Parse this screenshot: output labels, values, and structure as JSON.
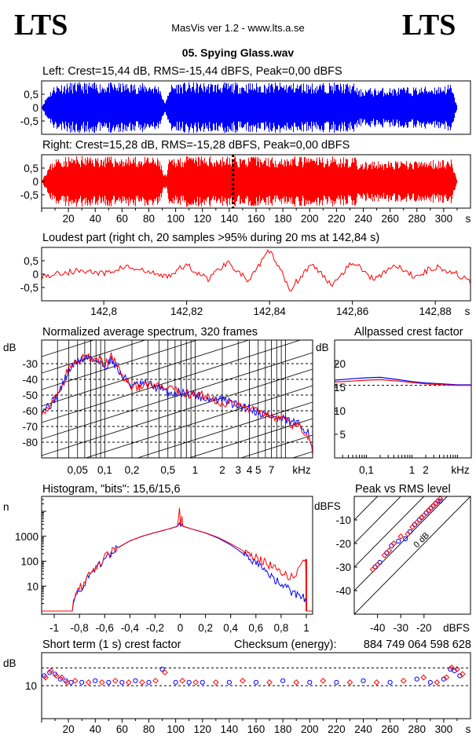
{
  "header": {
    "logo_left": "LTS",
    "logo_right": "LTS",
    "app_title": "MasVis ver 1.2 - www.lts.a.se",
    "file_title": "05. Spying Glass.wav"
  },
  "colors": {
    "left": "#0000ff",
    "right": "#ff0000",
    "grid": "#000000"
  },
  "chart_data": [
    {
      "type": "area",
      "id": "left_waveform",
      "title": "Left: Crest=15,44 dB, RMS=-15,44 dBFS, Peak=0,00 dBFS",
      "crest_db": 15.44,
      "rms_dbfs": -15.44,
      "peak_dbfs": 0.0,
      "xlim": [
        0,
        320
      ],
      "ylim": [
        -1,
        1
      ],
      "y_ticks": [
        "0,5",
        "0",
        "-0,5"
      ],
      "envelope": {
        "t": [
          0,
          2,
          5,
          10,
          20,
          40,
          60,
          80,
          88,
          91,
          93,
          95,
          100,
          120,
          140,
          160,
          180,
          200,
          220,
          234,
          236,
          240,
          260,
          280,
          300,
          305,
          308,
          310
        ],
        "amp": [
          0.05,
          0.3,
          0.6,
          0.95,
          1.0,
          1.0,
          0.98,
          0.97,
          0.9,
          0.25,
          0.3,
          0.9,
          1.0,
          1.0,
          1.0,
          0.99,
          1.0,
          0.98,
          1.0,
          0.95,
          0.7,
          0.78,
          0.8,
          0.82,
          0.9,
          0.95,
          0.4,
          0.0
        ]
      }
    },
    {
      "type": "area",
      "id": "right_waveform",
      "title": "Right: Crest=15,28 dB, RMS=-15,28 dBFS, Peak=0,00 dBFS",
      "crest_db": 15.28,
      "rms_dbfs": -15.28,
      "peak_dbfs": 0.0,
      "xlim": [
        0,
        320
      ],
      "ylim": [
        -1,
        1
      ],
      "y_ticks": [
        "0,5",
        "0",
        "-0,5"
      ],
      "loudest_marker_s": 142.84,
      "x_ticks": [
        "20",
        "40",
        "60",
        "80",
        "100",
        "120",
        "140",
        "160",
        "180",
        "200",
        "220",
        "240",
        "260",
        "280",
        "300"
      ],
      "x_unit": "s",
      "envelope": {
        "t": [
          0,
          2,
          5,
          10,
          20,
          40,
          60,
          80,
          88,
          91,
          93,
          95,
          100,
          120,
          140,
          160,
          180,
          200,
          220,
          234,
          236,
          240,
          260,
          280,
          300,
          305,
          308,
          310
        ],
        "amp": [
          0.05,
          0.3,
          0.6,
          0.95,
          1.0,
          1.0,
          0.98,
          0.97,
          0.9,
          0.25,
          0.3,
          0.9,
          1.0,
          1.0,
          1.0,
          0.99,
          1.0,
          0.98,
          1.0,
          0.95,
          0.7,
          0.78,
          0.8,
          0.82,
          0.9,
          0.95,
          0.4,
          0.0
        ]
      }
    },
    {
      "type": "line",
      "id": "loudest_part",
      "title": "Loudest part (right ch, 20 samples >95% during 20 ms at 142,84 s)",
      "xlim": [
        142.785,
        142.8885
      ],
      "ylim": [
        -1,
        1
      ],
      "x_ticks": [
        "142,8",
        "142,82",
        "142,84",
        "142,86",
        "142,88"
      ],
      "x_tick_values": [
        142.8,
        142.82,
        142.84,
        142.86,
        142.88
      ],
      "x_unit": "s",
      "y_ticks": [
        "0,5",
        "0",
        "-0,5"
      ],
      "x": [
        142.785,
        142.79,
        142.795,
        142.8,
        142.805,
        142.81,
        142.815,
        142.82,
        142.825,
        142.83,
        142.835,
        142.84,
        142.845,
        142.85,
        142.855,
        142.86,
        142.865,
        142.87,
        142.875,
        142.88,
        142.885,
        142.8885
      ],
      "values": [
        -0.1,
        0.05,
        0.15,
        0.0,
        0.3,
        0.1,
        -0.1,
        0.35,
        -0.2,
        0.5,
        -0.3,
        0.95,
        -0.6,
        0.4,
        -0.4,
        0.5,
        -0.2,
        0.35,
        -0.1,
        0.3,
        0.05,
        -0.35
      ]
    },
    {
      "type": "line",
      "id": "avg_spectrum",
      "title": "Normalized average spectrum, 320 frames",
      "ylabel": "dB",
      "x_unit": "kHz",
      "ylim": [
        -90,
        -15
      ],
      "xlim_khz": [
        0.02,
        20
      ],
      "y_ticks": [
        "-30",
        "-40",
        "-50",
        "-60",
        "-70",
        "-80"
      ],
      "x_ticks": [
        "0,05",
        "0,1",
        "0,2",
        "0,5",
        "1",
        "2",
        "3",
        "4",
        "5",
        "7",
        "kHz"
      ],
      "x_tick_values": [
        0.05,
        0.1,
        0.2,
        0.5,
        1,
        2,
        3,
        4,
        5,
        7
      ],
      "series": [
        {
          "name": "left",
          "f": [
            0.02,
            0.025,
            0.03,
            0.04,
            0.05,
            0.06,
            0.07,
            0.08,
            0.1,
            0.12,
            0.15,
            0.2,
            0.3,
            0.5,
            0.7,
            1,
            1.5,
            2,
            3,
            4,
            5,
            7,
            10,
            14,
            18,
            20
          ],
          "db": [
            -59,
            -56,
            -50,
            -34,
            -28,
            -27,
            -25,
            -28,
            -32,
            -27,
            -37,
            -44,
            -43,
            -49,
            -48,
            -50,
            -53,
            -53,
            -57,
            -58,
            -61,
            -64,
            -66,
            -69,
            -73,
            -85
          ]
        },
        {
          "name": "right",
          "f": [
            0.02,
            0.025,
            0.03,
            0.04,
            0.05,
            0.06,
            0.07,
            0.08,
            0.1,
            0.12,
            0.15,
            0.2,
            0.3,
            0.5,
            0.7,
            1,
            1.5,
            2,
            3,
            4,
            5,
            7,
            10,
            14,
            18,
            20
          ],
          "db": [
            -60,
            -57,
            -50,
            -32,
            -30,
            -24,
            -27,
            -26,
            -31,
            -25,
            -36,
            -45,
            -44,
            -46,
            -49,
            -49,
            -52,
            -55,
            -56,
            -59,
            -60,
            -63,
            -67,
            -70,
            -76,
            -88
          ]
        }
      ]
    },
    {
      "type": "line",
      "id": "allpass_crest",
      "title": "Allpassed crest factor",
      "ylabel": "dB",
      "x_unit": "kHz",
      "ylim": [
        0,
        25
      ],
      "y_ticks": [
        "20",
        "15",
        "10",
        "5"
      ],
      "x_ticks": [
        "0,1",
        "1",
        "2",
        "kHz"
      ],
      "x_tick_values": [
        0.1,
        1,
        2
      ],
      "reference_db": 15.4,
      "series": [
        {
          "name": "left",
          "f": [
            0.02,
            0.05,
            0.1,
            0.2,
            0.5,
            1,
            2,
            5,
            10,
            20
          ],
          "db": [
            16.5,
            16.8,
            17.0,
            17.1,
            16.6,
            16.2,
            15.9,
            15.7,
            15.5,
            15.5
          ]
        },
        {
          "name": "right",
          "f": [
            0.02,
            0.05,
            0.1,
            0.2,
            0.5,
            1,
            2,
            5,
            10,
            20
          ],
          "db": [
            16.1,
            16.3,
            16.5,
            16.6,
            16.3,
            16.0,
            15.7,
            15.5,
            15.4,
            15.4
          ]
        }
      ]
    },
    {
      "type": "line",
      "id": "histogram",
      "title": "Histogram, \"bits\": 15,6/15,6",
      "bits_left": 15.6,
      "bits_right": 15.6,
      "ylabel": "n",
      "y_scale": "log",
      "xlim": [
        -1.1,
        1.05
      ],
      "y_ticks": [
        "1000",
        "100",
        "10"
      ],
      "y_tick_values": [
        1000,
        100,
        10
      ],
      "x_ticks": [
        "-1",
        "-0,8",
        "-0,6",
        "-0,4",
        "-0,2",
        "0",
        "0,2",
        "0,4",
        "0,6",
        "0,8",
        "1"
      ],
      "x_tick_values": [
        -1,
        -0.8,
        -0.6,
        -0.4,
        -0.2,
        0,
        0.2,
        0.4,
        0.6,
        0.8,
        1
      ],
      "series": [
        {
          "name": "left",
          "x": [
            -0.85,
            -0.8,
            -0.7,
            -0.6,
            -0.5,
            -0.4,
            -0.3,
            -0.2,
            -0.1,
            -0.02,
            0,
            0.02,
            0.1,
            0.2,
            0.3,
            0.4,
            0.5,
            0.6,
            0.7,
            0.8,
            0.9,
            1.0
          ],
          "n": [
            3,
            6,
            35,
            130,
            330,
            650,
            1000,
            1400,
            1900,
            2500,
            4000,
            2500,
            1900,
            1350,
            850,
            450,
            200,
            80,
            30,
            12,
            5,
            3
          ]
        },
        {
          "name": "right",
          "x": [
            -0.85,
            -0.8,
            -0.7,
            -0.6,
            -0.5,
            -0.4,
            -0.3,
            -0.2,
            -0.1,
            -0.02,
            0,
            0.02,
            0.1,
            0.2,
            0.3,
            0.4,
            0.5,
            0.6,
            0.7,
            0.8,
            0.9,
            1.0
          ],
          "n": [
            4,
            8,
            40,
            140,
            340,
            660,
            1020,
            1420,
            1920,
            2550,
            30000,
            2550,
            1920,
            1380,
            900,
            500,
            260,
            140,
            70,
            40,
            20,
            120
          ]
        }
      ]
    },
    {
      "type": "scatter",
      "id": "peak_vs_rms",
      "title": "Peak vs RMS level",
      "ylabel": "dBFS",
      "xlabel": "dBFS",
      "xlim": [
        -50,
        0
      ],
      "ylim": [
        -50,
        0
      ],
      "x_ticks": [
        "-40",
        "-30",
        "-20"
      ],
      "x_tick_values": [
        -40,
        -30,
        -20
      ],
      "y_ticks": [
        "-10",
        "-20",
        "-30",
        "-40"
      ],
      "y_tick_values": [
        -10,
        -20,
        -30,
        -40
      ],
      "crest_lines_db": [
        0,
        10,
        20,
        30,
        40
      ],
      "crest_labels": [
        "0 dB",
        "10",
        "20",
        "30",
        "40"
      ],
      "series": [
        {
          "name": "left",
          "x": [
            -41,
            -39,
            -36,
            -34,
            -31,
            -28,
            -26,
            -24,
            -22,
            -21,
            -19,
            -18,
            -17,
            -16,
            -15,
            -14,
            -13
          ],
          "y": [
            -30,
            -28,
            -24,
            -21,
            -19,
            -18,
            -15,
            -12,
            -10,
            -9,
            -7,
            -6,
            -5,
            -4,
            -3,
            -2,
            -2
          ]
        },
        {
          "name": "right",
          "x": [
            -42,
            -40,
            -37,
            -35,
            -33,
            -30,
            -27,
            -25,
            -23,
            -21,
            -20,
            -18,
            -17,
            -16,
            -15,
            -14,
            -13
          ],
          "y": [
            -31,
            -29,
            -25,
            -23,
            -20,
            -17,
            -16,
            -13,
            -11,
            -9,
            -8,
            -6,
            -5,
            -4,
            -3,
            -2,
            -1
          ]
        }
      ]
    },
    {
      "type": "scatter",
      "id": "short_term_crest",
      "title": "Short term (1 s) crest factor",
      "checksum_label": "Checksum (energy):",
      "checksum_value": "884 749 064 598 628",
      "ylabel": "dB",
      "xlim": [
        0,
        320
      ],
      "ylim": [
        0,
        20
      ],
      "y_ticks": [
        "10"
      ],
      "y_tick_values": [
        10
      ],
      "dashed_levels_db": [
        10,
        15.4
      ],
      "x_ticks": [
        "20",
        "40",
        "60",
        "80",
        "100",
        "120",
        "140",
        "160",
        "180",
        "200",
        "220",
        "240",
        "260",
        "280",
        "300"
      ],
      "x_unit": "s",
      "series": [
        {
          "name": "left",
          "t": [
            2,
            6,
            10,
            14,
            18,
            22,
            30,
            40,
            50,
            60,
            70,
            80,
            90,
            100,
            110,
            120,
            140,
            160,
            180,
            200,
            220,
            240,
            260,
            280,
            290,
            300,
            305,
            308,
            312
          ],
          "db": [
            13,
            14,
            13.5,
            12,
            11.5,
            11,
            11,
            11.5,
            11,
            11,
            11.5,
            11,
            15,
            11,
            11,
            11,
            11,
            11,
            11.5,
            11,
            11,
            11.5,
            11,
            12,
            11,
            12,
            15,
            14.5,
            13
          ]
        },
        {
          "name": "right",
          "t": [
            3,
            7,
            11,
            15,
            19,
            25,
            35,
            45,
            55,
            65,
            75,
            85,
            92,
            105,
            115,
            130,
            150,
            170,
            190,
            210,
            230,
            250,
            270,
            285,
            295,
            302,
            306,
            310,
            314
          ],
          "db": [
            12.5,
            14.5,
            13,
            12.5,
            11,
            11.5,
            11,
            11,
            11.5,
            11,
            11,
            11.5,
            14,
            11.5,
            11,
            11,
            11.5,
            11,
            11,
            11.5,
            11,
            11,
            11.5,
            12.5,
            11,
            12.5,
            15.5,
            15,
            13.5
          ]
        }
      ]
    }
  ]
}
